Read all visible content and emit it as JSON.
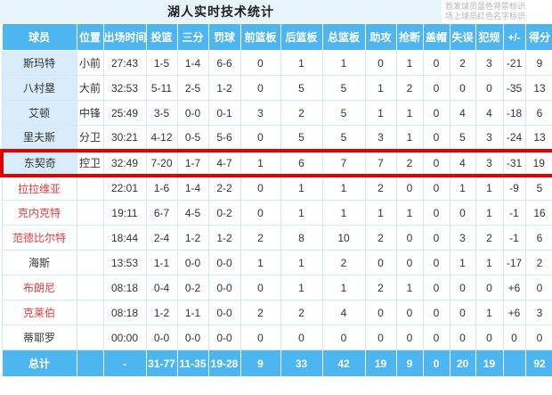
{
  "title": "湖人实时技术统计",
  "legend": {
    "starter_note": "首发球员蓝色背景标识",
    "oncourt_note": "场上球员红色名字标识"
  },
  "colors": {
    "header_bg": "#4db5ef",
    "titlebar_bg": "#e8f5fd",
    "starter_cell_bg": "#d8ecfb",
    "oncourt_name_color": "#e03c3c",
    "highlight_border": "#e00000",
    "grid_line": "#cfe9fa",
    "text": "#333333",
    "legend_text": "#b5b5b5"
  },
  "table": {
    "columns": [
      "球员",
      "位置",
      "出场时间",
      "投篮",
      "三分",
      "罚球",
      "前篮板",
      "后篮板",
      "总篮板",
      "助攻",
      "抢断",
      "盖帽",
      "失误",
      "犯规",
      "+/-",
      "得分"
    ],
    "rows": [
      {
        "name": "斯玛特",
        "starter": true,
        "oncourt": false,
        "highlight": false,
        "cells": [
          "小前",
          "27:43",
          "1-5",
          "1-4",
          "6-6",
          "0",
          "1",
          "1",
          "0",
          "1",
          "0",
          "2",
          "3",
          "-21",
          "9"
        ]
      },
      {
        "name": "八村塁",
        "starter": true,
        "oncourt": false,
        "highlight": false,
        "cells": [
          "大前",
          "32:53",
          "5-11",
          "2-5",
          "1-2",
          "0",
          "5",
          "5",
          "1",
          "2",
          "0",
          "0",
          "0",
          "-35",
          "13"
        ]
      },
      {
        "name": "艾顿",
        "starter": true,
        "oncourt": false,
        "highlight": false,
        "cells": [
          "中锋",
          "25:49",
          "3-5",
          "0-0",
          "0-1",
          "3",
          "2",
          "5",
          "1",
          "1",
          "0",
          "4",
          "4",
          "-18",
          "6"
        ]
      },
      {
        "name": "里夫斯",
        "starter": true,
        "oncourt": false,
        "highlight": false,
        "cells": [
          "分卫",
          "30:21",
          "4-12",
          "0-5",
          "5-6",
          "0",
          "5",
          "5",
          "3",
          "1",
          "0",
          "5",
          "3",
          "-24",
          "13"
        ]
      },
      {
        "name": "东契奇",
        "starter": true,
        "oncourt": false,
        "highlight": true,
        "cells": [
          "控卫",
          "32:49",
          "7-20",
          "1-7",
          "4-7",
          "1",
          "6",
          "7",
          "7",
          "2",
          "0",
          "4",
          "3",
          "-31",
          "19"
        ]
      },
      {
        "name": "拉拉维亚",
        "starter": false,
        "oncourt": true,
        "highlight": false,
        "cells": [
          "",
          "22:01",
          "1-6",
          "1-4",
          "2-2",
          "0",
          "1",
          "1",
          "2",
          "0",
          "0",
          "1",
          "1",
          "-9",
          "5"
        ]
      },
      {
        "name": "克内克特",
        "starter": false,
        "oncourt": true,
        "highlight": false,
        "cells": [
          "",
          "19:11",
          "6-7",
          "4-5",
          "0-2",
          "0",
          "1",
          "1",
          "1",
          "1",
          "0",
          "0",
          "1",
          "-1",
          "16"
        ]
      },
      {
        "name": "范德比尔特",
        "starter": false,
        "oncourt": true,
        "highlight": false,
        "cells": [
          "",
          "18:44",
          "2-4",
          "1-2",
          "1-2",
          "2",
          "8",
          "10",
          "2",
          "0",
          "0",
          "3",
          "2",
          "-1",
          "6"
        ]
      },
      {
        "name": "海斯",
        "starter": false,
        "oncourt": false,
        "highlight": false,
        "cells": [
          "",
          "13:53",
          "1-1",
          "0-0",
          "0-0",
          "1",
          "1",
          "2",
          "0",
          "0",
          "0",
          "1",
          "1",
          "-17",
          "2"
        ]
      },
      {
        "name": "布朗尼",
        "starter": false,
        "oncourt": true,
        "highlight": false,
        "cells": [
          "",
          "08:18",
          "0-4",
          "0-2",
          "0-0",
          "0",
          "1",
          "1",
          "2",
          "1",
          "0",
          "0",
          "0",
          "+6",
          "0"
        ]
      },
      {
        "name": "克莱伯",
        "starter": false,
        "oncourt": true,
        "highlight": false,
        "cells": [
          "",
          "08:18",
          "1-2",
          "1-1",
          "0-0",
          "2",
          "2",
          "4",
          "0",
          "0",
          "0",
          "0",
          "1",
          "+6",
          "3"
        ]
      },
      {
        "name": "蒂耶罗",
        "starter": false,
        "oncourt": false,
        "highlight": false,
        "cells": [
          "",
          "00:00",
          "0-0",
          "0-0",
          "0-0",
          "0",
          "0",
          "0",
          "0",
          "0",
          "0",
          "0",
          "0",
          "0",
          "0"
        ]
      }
    ],
    "total": {
      "label": "总计",
      "cells": [
        "",
        "-",
        "31-77",
        "11-35",
        "19-28",
        "9",
        "33",
        "42",
        "19",
        "9",
        "0",
        "20",
        "19",
        "",
        "92"
      ]
    }
  }
}
